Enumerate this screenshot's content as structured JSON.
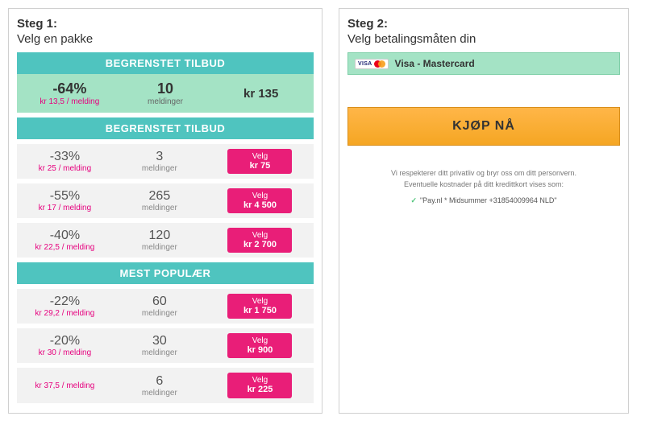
{
  "colors": {
    "teal": "#4fc4bf",
    "mint": "#a4e3c5",
    "magenta": "#e91e78",
    "orange_top": "#ffb648",
    "orange_bottom": "#f5a623",
    "row_bg": "#f2f2f2"
  },
  "step1": {
    "title": "Steg 1:",
    "subtitle": "Velg en pakke",
    "section_limited": "BEGRENSTET TILBUD",
    "hero": {
      "discount": "-64%",
      "per_msg": "kr 13,5 / melding",
      "qty": "10",
      "unit": "meldinger",
      "price": "kr 135"
    },
    "section_limited2": "BEGRENSTET TILBUD",
    "limited_rows": [
      {
        "discount": "-33%",
        "per_msg": "kr 25 / melding",
        "qty": "3",
        "unit": "meldinger",
        "btn": "Velg",
        "price": "kr 75"
      },
      {
        "discount": "-55%",
        "per_msg": "kr 17 / melding",
        "qty": "265",
        "unit": "meldinger",
        "btn": "Velg",
        "price": "kr 4 500"
      },
      {
        "discount": "-40%",
        "per_msg": "kr 22,5 / melding",
        "qty": "120",
        "unit": "meldinger",
        "btn": "Velg",
        "price": "kr 2 700"
      }
    ],
    "section_popular": "MEST POPULÆR",
    "popular_rows": [
      {
        "discount": "-22%",
        "per_msg": "kr 29,2 / melding",
        "qty": "60",
        "unit": "meldinger",
        "btn": "Velg",
        "price": "kr 1 750"
      },
      {
        "discount": "-20%",
        "per_msg": "kr 30 / melding",
        "qty": "30",
        "unit": "meldinger",
        "btn": "Velg",
        "price": "kr 900"
      },
      {
        "discount": "",
        "per_msg": "kr 37,5 / melding",
        "qty": "6",
        "unit": "meldinger",
        "btn": "Velg",
        "price": "kr 225"
      }
    ]
  },
  "step2": {
    "title": "Steg 2:",
    "subtitle": "Velg betalingsmåten din",
    "payment_label": "Visa - Mastercard",
    "buy_label": "KJØP NÅ",
    "privacy_line1": "Vi respekterer ditt privatliv og bryr oss om ditt personvern.",
    "privacy_line2": "Eventuelle kostnader på ditt kredittkort vises som:",
    "statement": "\"Pay.nl * Midsummer +31854009964 NLD\""
  }
}
